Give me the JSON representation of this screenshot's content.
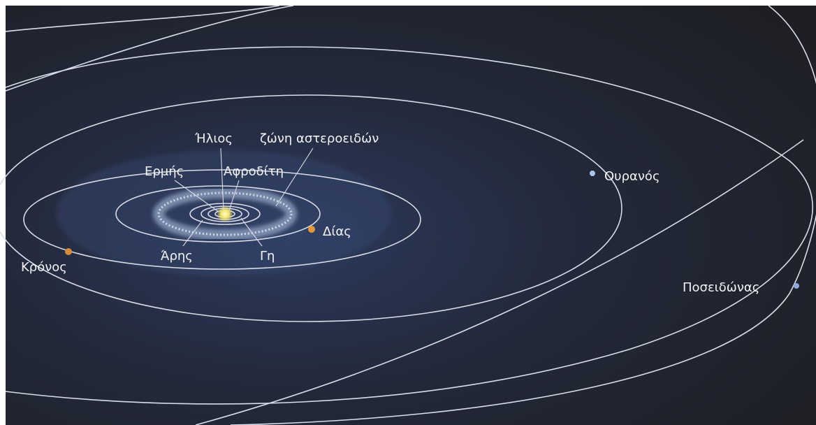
{
  "labels": {
    "sun": "Ήλιος",
    "asteroid_belt": "ζώνη αστεροειδών",
    "mercury": "Ερμής",
    "venus": "Αφροδίτη",
    "jupiter": "Δίας",
    "saturn": "Κρόνος",
    "mars": "Άρης",
    "earth": "Γη",
    "uranus": "Ουρανός",
    "neptune": "Ποσειδώνας"
  }
}
